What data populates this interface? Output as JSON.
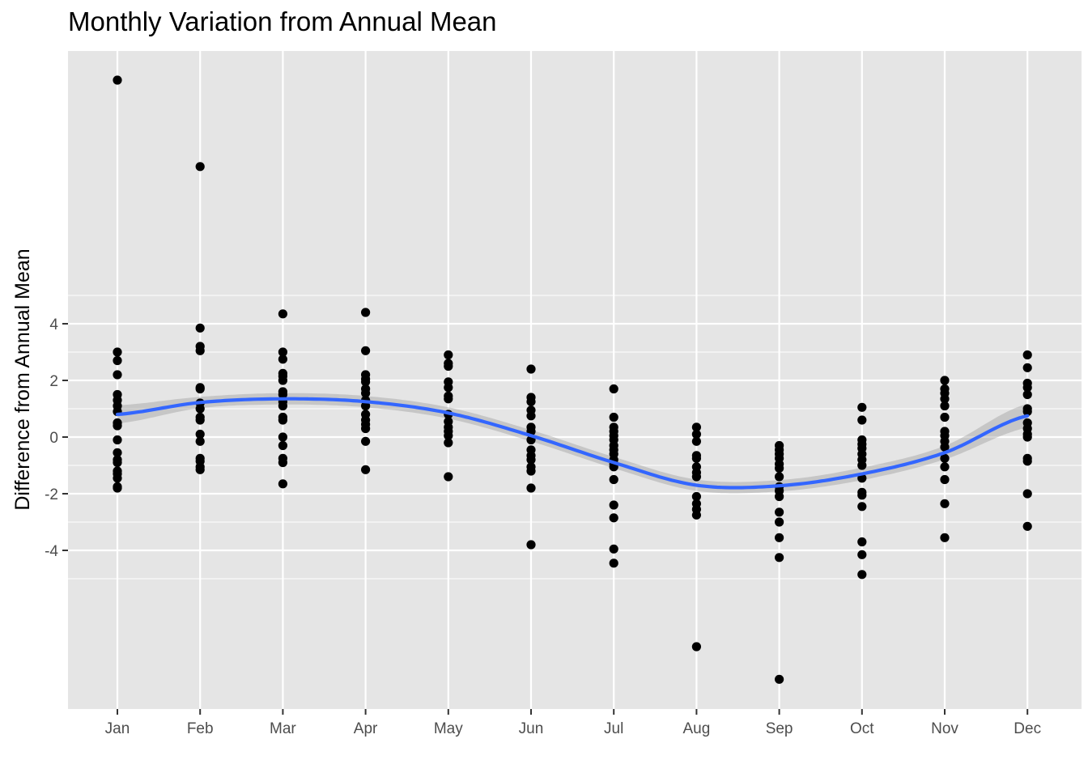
{
  "chart_data": {
    "type": "scatter",
    "title": "Monthly Variation from Annual Mean",
    "xlabel": "",
    "ylabel": "Difference from Annual Mean",
    "categories": [
      "Jan",
      "Feb",
      "Mar",
      "Apr",
      "May",
      "Jun",
      "Jul",
      "Aug",
      "Sep",
      "Oct",
      "Nov",
      "Dec"
    ],
    "yticks": [
      4,
      2,
      0,
      -2,
      -4
    ],
    "ylim": [
      -9.5,
      13.3
    ],
    "grid": true,
    "legend": "none",
    "points": {
      "Jan": [
        12.6,
        3.0,
        2.7,
        2.2,
        1.5,
        1.3,
        1.1,
        0.9,
        0.5,
        0.4,
        -0.1,
        -0.55,
        -0.8,
        -0.9,
        -1.2,
        -1.3,
        -1.45,
        -1.75,
        -1.8
      ],
      "Feb": [
        9.55,
        3.85,
        3.2,
        3.05,
        1.75,
        1.7,
        1.2,
        1.0,
        0.7,
        0.6,
        0.1,
        -0.15,
        -0.75,
        -0.85,
        -1.05,
        -1.15
      ],
      "Mar": [
        4.35,
        3.0,
        2.75,
        2.25,
        2.15,
        2.0,
        1.6,
        1.5,
        1.25,
        1.1,
        0.7,
        0.6,
        0.0,
        -0.3,
        -0.75,
        -0.9,
        -1.65
      ],
      "Apr": [
        4.4,
        3.05,
        2.2,
        2.05,
        1.95,
        1.7,
        1.55,
        1.3,
        1.1,
        0.8,
        0.6,
        0.45,
        0.3,
        -0.15,
        -1.15
      ],
      "May": [
        2.9,
        2.6,
        2.5,
        1.95,
        1.75,
        1.45,
        1.35,
        0.8,
        0.55,
        0.35,
        0.2,
        0.05,
        -0.2,
        -1.4
      ],
      "Jun": [
        2.4,
        1.4,
        1.25,
        0.95,
        0.75,
        0.35,
        0.2,
        -0.1,
        -0.45,
        -0.65,
        -0.8,
        -1.05,
        -1.2,
        -1.8,
        -3.8
      ],
      "Jul": [
        1.7,
        0.7,
        0.35,
        0.2,
        0.05,
        -0.1,
        -0.3,
        -0.45,
        -0.6,
        -0.8,
        -0.95,
        -1.05,
        -1.5,
        -2.4,
        -2.85,
        -3.95,
        -4.45
      ],
      "Aug": [
        0.35,
        0.1,
        -0.15,
        -0.65,
        -0.75,
        -1.05,
        -1.25,
        -1.4,
        -2.1,
        -2.35,
        -2.55,
        -2.75,
        -7.4
      ],
      "Sep": [
        -0.3,
        -0.45,
        -0.6,
        -0.75,
        -0.95,
        -1.1,
        -1.4,
        -1.75,
        -1.9,
        -2.1,
        -2.65,
        -3.0,
        -3.55,
        -4.25,
        -8.55
      ],
      "Oct": [
        1.05,
        0.6,
        -0.1,
        -0.25,
        -0.4,
        -0.6,
        -0.8,
        -1.0,
        -1.45,
        -1.95,
        -2.05,
        -2.45,
        -3.7,
        -4.15,
        -4.85
      ],
      "Nov": [
        2.0,
        1.7,
        1.55,
        1.35,
        1.1,
        0.7,
        0.2,
        0.05,
        -0.15,
        -0.35,
        -0.75,
        -1.05,
        -1.5,
        -2.35,
        -3.55
      ],
      "Dec": [
        2.9,
        2.45,
        1.9,
        1.75,
        1.5,
        1.0,
        0.9,
        0.5,
        0.3,
        0.1,
        0.0,
        -0.75,
        -0.85,
        -2.0,
        -3.15
      ]
    },
    "smooth": {
      "method": "loess",
      "color": "#3366FF",
      "band_color": "#999999",
      "fit": [
        0.8,
        1.22,
        1.35,
        1.25,
        0.85,
        0.05,
        -0.9,
        -1.7,
        -1.72,
        -1.3,
        -0.55,
        0.75
      ],
      "se": [
        0.32,
        0.2,
        0.2,
        0.2,
        0.2,
        0.2,
        0.2,
        0.2,
        0.2,
        0.22,
        0.24,
        0.42
      ]
    },
    "colors": {
      "panel_background": "#E5E5E5",
      "grid_line": "#FFFFFF",
      "point": "#000000",
      "axis_text": "#4D4D4D"
    }
  }
}
